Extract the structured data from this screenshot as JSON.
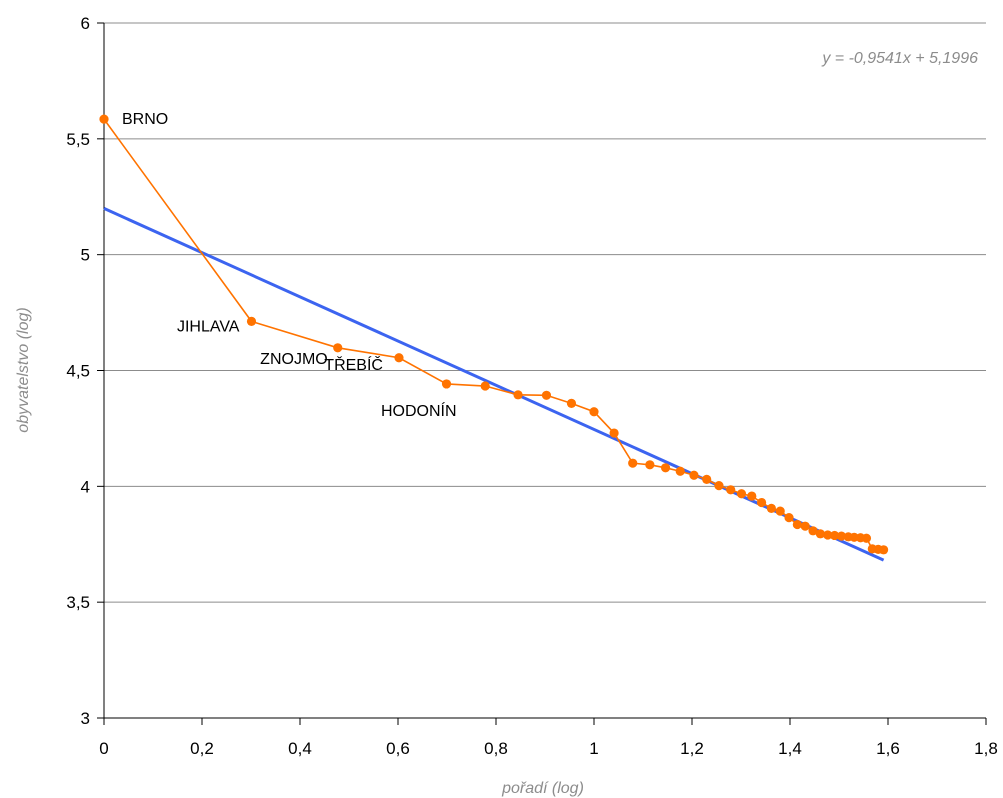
{
  "chart_data": {
    "type": "scatter",
    "xlabel": "pořadí (log)",
    "ylabel": "obyvatelstvo (log)",
    "xlim": [
      0,
      1.8
    ],
    "ylim": [
      3,
      6
    ],
    "x_ticks": [
      0,
      0.2,
      0.4,
      0.6,
      0.8,
      1,
      1.2,
      1.4,
      1.6,
      1.8
    ],
    "x_tick_labels": [
      "0",
      "0,2",
      "0,4",
      "0,6",
      "0,8",
      "1",
      "1,2",
      "1,4",
      "1,6",
      "1,8"
    ],
    "y_ticks": [
      3,
      3.5,
      4,
      4.5,
      5,
      5.5,
      6
    ],
    "y_tick_labels": [
      "3",
      "3,5",
      "4",
      "4,5",
      "5",
      "5,5",
      "6"
    ],
    "grid": "horizontal",
    "equation": "y = -0,9541x + 5,1996",
    "series": [
      {
        "color": "#ff7300",
        "points": [
          [
            0,
            5.585
          ],
          [
            0.301,
            4.712
          ],
          [
            0.477,
            4.598
          ],
          [
            0.602,
            4.555
          ],
          [
            0.699,
            4.442
          ],
          [
            0.778,
            4.433
          ],
          [
            0.845,
            4.395
          ],
          [
            0.903,
            4.393
          ],
          [
            0.954,
            4.358
          ],
          [
            1.0,
            4.322
          ],
          [
            1.041,
            4.23
          ],
          [
            1.079,
            4.1
          ],
          [
            1.114,
            4.093
          ],
          [
            1.146,
            4.08
          ],
          [
            1.176,
            4.065
          ],
          [
            1.204,
            4.048
          ],
          [
            1.23,
            4.03
          ],
          [
            1.255,
            4.003
          ],
          [
            1.279,
            3.985
          ],
          [
            1.301,
            3.968
          ],
          [
            1.322,
            3.958
          ],
          [
            1.342,
            3.93
          ],
          [
            1.362,
            3.905
          ],
          [
            1.38,
            3.893
          ],
          [
            1.398,
            3.865
          ],
          [
            1.415,
            3.835
          ],
          [
            1.431,
            3.828
          ],
          [
            1.447,
            3.808
          ],
          [
            1.462,
            3.795
          ],
          [
            1.477,
            3.79
          ],
          [
            1.491,
            3.788
          ],
          [
            1.505,
            3.785
          ],
          [
            1.519,
            3.782
          ],
          [
            1.531,
            3.78
          ],
          [
            1.544,
            3.778
          ],
          [
            1.556,
            3.776
          ],
          [
            1.568,
            3.73
          ],
          [
            1.58,
            3.728
          ],
          [
            1.591,
            3.726
          ]
        ],
        "labels": [
          {
            "index": 0,
            "text": "BRNO"
          },
          {
            "index": 1,
            "text": "JIHLAVA"
          },
          {
            "index": 2,
            "text": "ZNOJMO"
          },
          {
            "index": 3,
            "text": "TŘEBÍČ"
          },
          {
            "index": 4,
            "text": "HODONÍN"
          }
        ]
      }
    ],
    "trendline": {
      "color": "#3c64f0",
      "slope": -0.9541,
      "intercept": 5.1996,
      "x_range": [
        0,
        1.591
      ]
    }
  }
}
